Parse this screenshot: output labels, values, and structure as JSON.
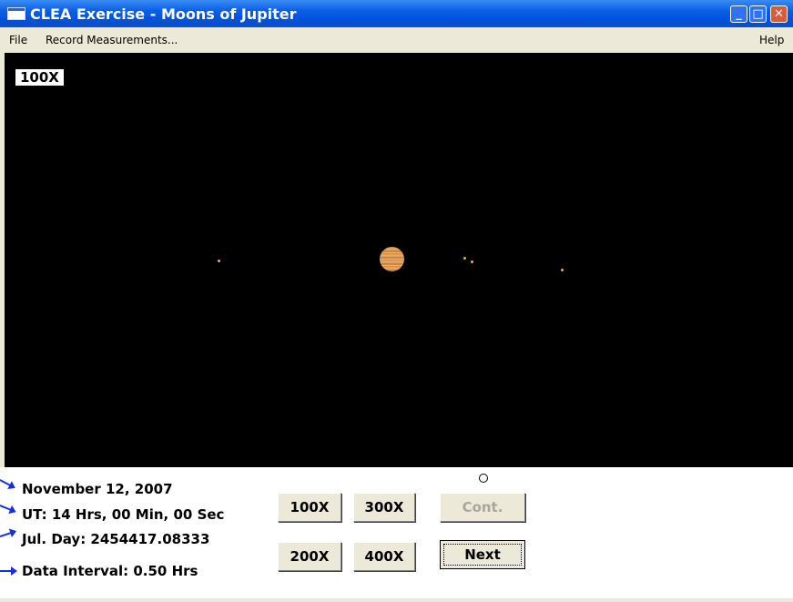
{
  "window": {
    "title": "CLEA Exercise - Moons of Jupiter",
    "controls": {
      "minimize": "_",
      "maximize": "□",
      "close": "✕"
    }
  },
  "menu": {
    "file": "File",
    "record": "Record Measurements...",
    "help": "Help"
  },
  "viewport": {
    "magnification_label": "100X"
  },
  "info": {
    "date": "November 12, 2007",
    "ut": "UT: 14 Hrs, 00 Min, 00 Sec",
    "julian_day": "Jul. Day: 2454417.08333",
    "interval": "Data Interval: 0.50 Hrs"
  },
  "buttons": {
    "zoom_100": "100X",
    "zoom_300": "300X",
    "zoom_200": "200X",
    "zoom_400": "400X",
    "cont": "Cont.",
    "next": "Next"
  },
  "colors": {
    "titlebar": "#0a5ee6",
    "sky": "#000000",
    "moon": "#f0b040",
    "arrow": "#1230e0"
  }
}
